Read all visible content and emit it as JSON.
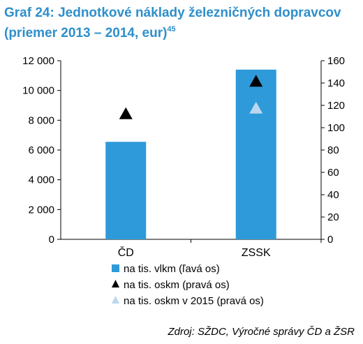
{
  "chart_data": {
    "type": "bar",
    "title": "Graf 24: Jednotkové náklady železničných dopravcov",
    "subtitle": "(priemer 2013 – 2014, eur)",
    "title_superscript": "45",
    "categories": [
      "ČD",
      "ZSSK"
    ],
    "series": [
      {
        "name": "na tis. vlkm (ľavá os)",
        "type": "bar",
        "axis": "left",
        "color": "#2e9ad9",
        "values": [
          6550,
          11400
        ]
      },
      {
        "name": "na tis. oskm (pravá os)",
        "type": "marker",
        "axis": "right",
        "color": "#000000",
        "values": [
          113,
          142
        ]
      },
      {
        "name": "na tis. oskm v 2015  (pravá os)",
        "type": "marker",
        "axis": "right",
        "color": "#bcd7ee",
        "values": [
          null,
          118
        ]
      }
    ],
    "y_left": {
      "min": 0,
      "max": 12000,
      "ticks": [
        "0",
        "2 000",
        "4 000",
        "6 000",
        "8 000",
        "10 000",
        "12 000"
      ]
    },
    "y_right": {
      "min": 0,
      "max": 160,
      "ticks": [
        "0",
        "20",
        "40",
        "60",
        "80",
        "100",
        "120",
        "140",
        "160"
      ]
    },
    "grid": false,
    "legend_position": "bottom",
    "source": "Zdroj: SŽDC, Výročné správy ČD a ŽSR",
    "title_color": "#2e8fcb"
  }
}
